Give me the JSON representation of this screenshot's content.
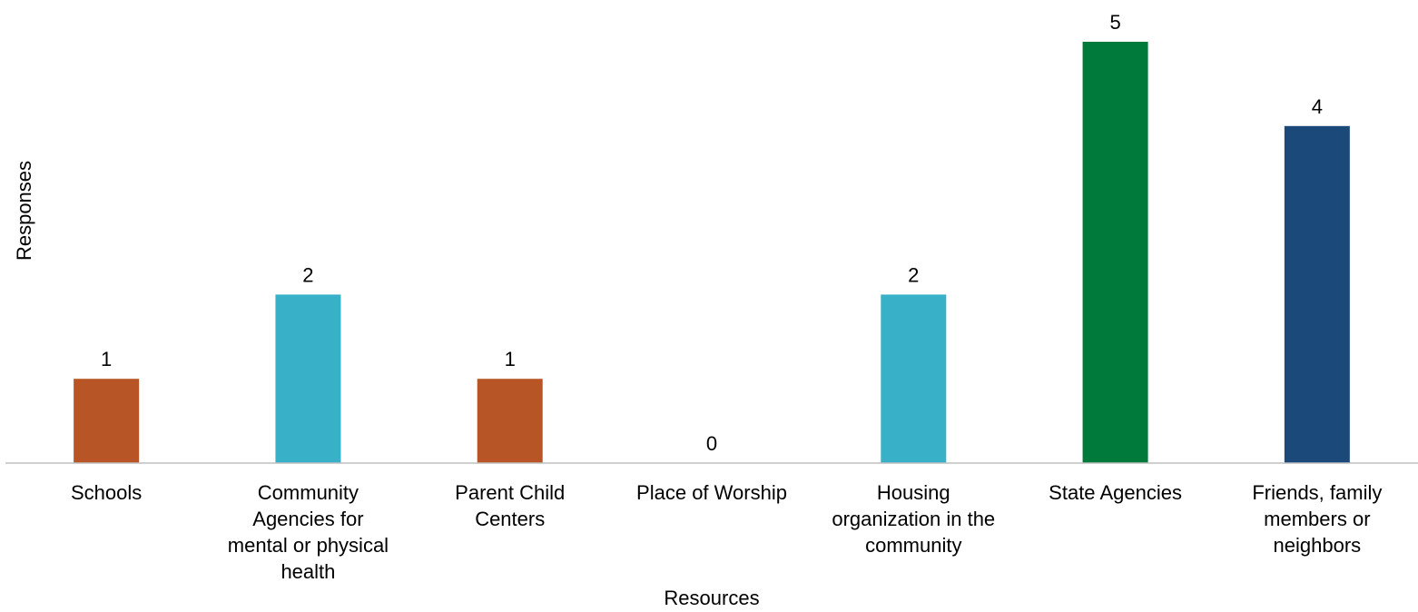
{
  "chart_data": {
    "type": "bar",
    "title": "",
    "xlabel": "Resources",
    "ylabel": "Responses",
    "ylim": [
      0,
      5
    ],
    "grid": false,
    "legend": "none",
    "categories": [
      [
        "Schools"
      ],
      [
        "Community",
        "Agencies for",
        "mental or physical",
        "health"
      ],
      [
        "Parent Child",
        "Centers"
      ],
      [
        "Place of Worship"
      ],
      [
        "Housing",
        "organization in the",
        "community"
      ],
      [
        "State Agencies"
      ],
      [
        "Friends, family",
        "members or",
        "neighbors"
      ]
    ],
    "values": [
      1,
      2,
      1,
      0,
      2,
      5,
      4
    ],
    "colors": [
      "#b75526",
      "#37b0c8",
      "#b75526",
      "#b75526",
      "#37b0c8",
      "#007a3a",
      "#1b4a7a"
    ],
    "axis_color": "#bfbfbf"
  }
}
